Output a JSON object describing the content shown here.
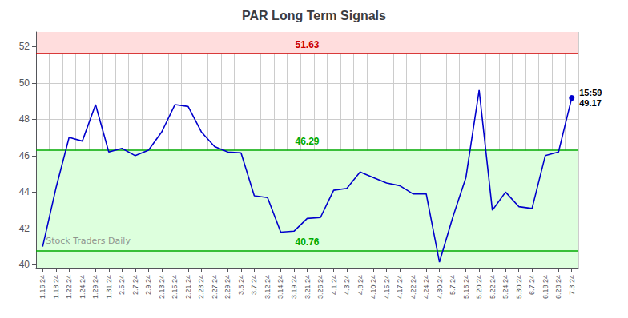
{
  "chart_data": {
    "type": "line",
    "title": "PAR Long Term Signals",
    "categories": [
      "1.16.24",
      "1.18.24",
      "1.22.24",
      "1.24.24",
      "1.29.24",
      "1.31.24",
      "2.5.24",
      "2.7.24",
      "2.9.24",
      "2.13.24",
      "2.15.24",
      "2.21.24",
      "2.23.24",
      "2.27.24",
      "2.29.24",
      "3.5.24",
      "3.7.24",
      "3.12.24",
      "3.14.24",
      "3.19.24",
      "3.21.24",
      "3.26.24",
      "4.1.24",
      "4.3.24",
      "4.8.24",
      "4.10.24",
      "4.15.24",
      "4.17.24",
      "4.22.24",
      "4.24.24",
      "4.30.24",
      "5.7.24",
      "5.16.24",
      "5.20.24",
      "5.22.24",
      "5.24.24",
      "5.30.24",
      "6.7.24",
      "6.18.24",
      "6.28.24",
      "7.3.24"
    ],
    "values": [
      41.0,
      44.2,
      47.0,
      46.8,
      48.8,
      46.2,
      46.4,
      46.0,
      46.3,
      47.3,
      48.8,
      48.7,
      47.3,
      46.5,
      46.2,
      46.15,
      43.8,
      43.7,
      41.8,
      41.85,
      42.55,
      42.6,
      44.1,
      44.2,
      45.1,
      44.8,
      44.5,
      44.35,
      43.9,
      43.9,
      40.15,
      42.6,
      44.8,
      49.6,
      43.0,
      44.0,
      43.2,
      43.1,
      46.0,
      46.2,
      49.17
    ],
    "color": "#0000cc",
    "ylim": [
      39.8,
      52.8
    ],
    "yticks": [
      40,
      42,
      44,
      46,
      48,
      50,
      52
    ],
    "grid": true,
    "reference_lines": [
      {
        "value": 51.63,
        "color": "#cc0000"
      },
      {
        "value": 46.29,
        "color": "#00aa00"
      },
      {
        "value": 40.76,
        "color": "#00aa00"
      }
    ],
    "zones": [
      {
        "from": 51.63,
        "to": 52.8,
        "color": "#ffdddd"
      },
      {
        "from": 39.8,
        "to": 46.29,
        "color": "#ddffdd"
      }
    ],
    "annotations": [
      {
        "text": "15:59",
        "value": 49.17
      },
      {
        "text": "Stock Traders Daily"
      }
    ]
  }
}
